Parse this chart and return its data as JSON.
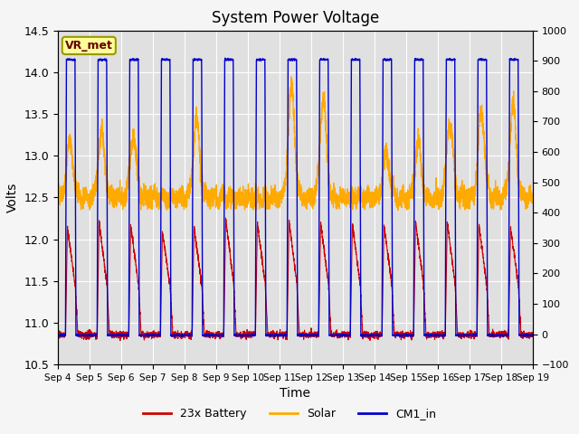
{
  "title": "System Power Voltage",
  "xlabel": "Time",
  "ylabel": "Volts",
  "ylim_left": [
    10.5,
    14.5
  ],
  "ylim_right": [
    -100,
    1000
  ],
  "yticks_left": [
    10.5,
    11.0,
    11.5,
    12.0,
    12.5,
    13.0,
    13.5,
    14.0,
    14.5
  ],
  "yticks_right": [
    -100,
    0,
    100,
    200,
    300,
    400,
    500,
    600,
    700,
    800,
    900,
    1000
  ],
  "xtick_labels": [
    "Sep 4",
    "Sep 5",
    "Sep 6",
    "Sep 7",
    "Sep 8",
    "Sep 9",
    "Sep 10",
    "Sep 11",
    "Sep 12",
    "Sep 13",
    "Sep 14",
    "Sep 15",
    "Sep 16",
    "Sep 17",
    "Sep 18",
    "Sep 19"
  ],
  "color_battery": "#cc0000",
  "color_solar": "#ffaa00",
  "color_cm1": "#0000cc",
  "annotation_text": "VR_met",
  "annotation_box_facecolor": "#ffff99",
  "annotation_box_edgecolor": "#999900",
  "background_color": "#e0e0e0",
  "fig_facecolor": "#f5f5f5",
  "grid_color": "#ffffff",
  "legend_labels": [
    "23x Battery",
    "Solar",
    "CM1_in"
  ],
  "n_days": 15,
  "cm1_base": 10.85,
  "cm1_peak": 14.15,
  "battery_base": 10.85,
  "battery_day_peak": 12.1,
  "solar_base": 12.5,
  "solar_noise": 0.07
}
